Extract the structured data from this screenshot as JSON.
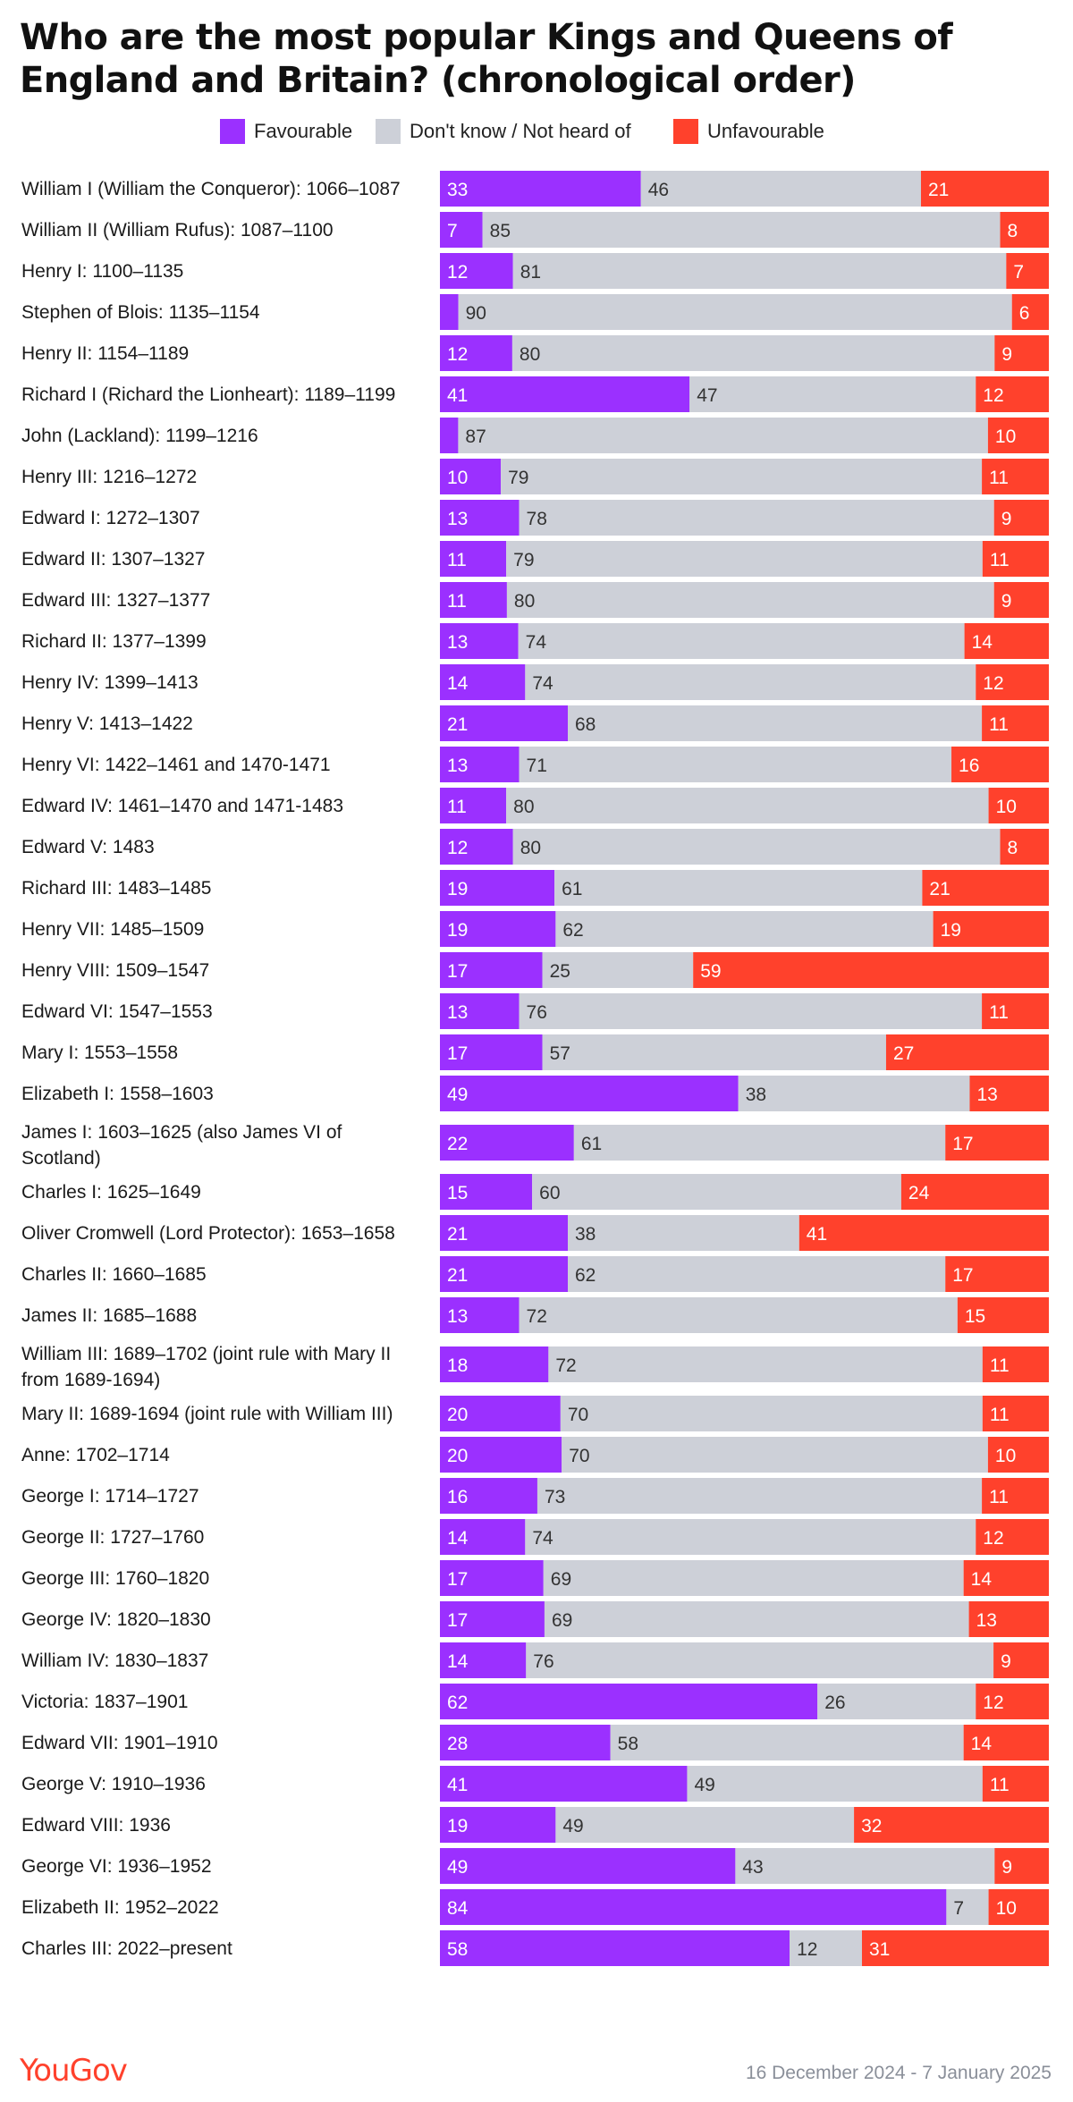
{
  "title": "Who are the most popular Kings and Queens of England and Britain? (chronological order)",
  "colors": {
    "favourable": "#9b30ff",
    "neutral": "#cdd0d8",
    "unfavourable": "#ff412c"
  },
  "legend": [
    "Favourable",
    "Don't know / Not heard of",
    "Unfavourable"
  ],
  "brand": "YouGov",
  "date_range": "16 December 2024 - 7 January 2025",
  "chart_data": {
    "type": "bar",
    "orientation": "horizontal",
    "stacked": true,
    "xlim": [
      0,
      100
    ],
    "categories": [
      "William I (William the Conqueror): 1066–1087",
      "William II (William Rufus): 1087–1100",
      "Henry I: 1100–1135",
      "Stephen of Blois: 1135–1154",
      "Henry II: 1154–1189",
      "Richard I (Richard the Lionheart): 1189–1199",
      "John (Lackland): 1199–1216",
      "Henry III: 1216–1272",
      "Edward I: 1272–1307",
      "Edward II: 1307–1327",
      "Edward III: 1327–1377",
      "Richard II: 1377–1399",
      "Henry IV: 1399–1413",
      "Henry V: 1413–1422",
      "Henry VI: 1422–1461 and 1470-1471",
      "Edward IV: 1461–1470 and 1471-1483",
      "Edward V: 1483",
      "Richard III: 1483–1485",
      "Henry VII: 1485–1509",
      "Henry VIII: 1509–1547",
      "Edward VI: 1547–1553",
      "Mary I: 1553–1558",
      "Elizabeth I: 1558–1603",
      "James I: 1603–1625 (also James VI of Scotland)",
      "Charles I: 1625–1649",
      "Oliver Cromwell (Lord Protector): 1653–1658",
      "Charles II: 1660–1685",
      "James II: 1685–1688",
      "William III: 1689–1702 (joint rule with Mary II from 1689-1694)",
      "Mary II: 1689-1694 (joint rule with William III)",
      "Anne: 1702–1714",
      "George I: 1714–1727",
      "George II: 1727–1760",
      "George III: 1760–1820",
      "George IV: 1820–1830",
      "William IV: 1830–1837",
      "Victoria: 1837–1901",
      "Edward VII: 1901–1910",
      "George V: 1910–1936",
      "Edward VIII: 1936",
      "George VI: 1936–1952",
      "Elizabeth II: 1952–2022",
      "Charles III: 2022–present"
    ],
    "series": [
      {
        "name": "Favourable",
        "values": [
          33,
          7,
          12,
          3,
          12,
          41,
          3,
          10,
          13,
          11,
          11,
          13,
          14,
          21,
          13,
          11,
          12,
          19,
          19,
          17,
          13,
          17,
          49,
          22,
          15,
          21,
          21,
          13,
          18,
          20,
          20,
          16,
          14,
          17,
          17,
          14,
          62,
          28,
          41,
          19,
          49,
          84,
          58
        ],
        "labels": [
          "33",
          "7",
          "12",
          "",
          "12",
          "41",
          "",
          "10",
          "13",
          "11",
          "11",
          "13",
          "14",
          "21",
          "13",
          "11",
          "12",
          "19",
          "19",
          "17",
          "13",
          "17",
          "49",
          "22",
          "15",
          "21",
          "21",
          "13",
          "18",
          "20",
          "20",
          "16",
          "14",
          "17",
          "17",
          "14",
          "62",
          "28",
          "41",
          "19",
          "49",
          "84",
          "58"
        ]
      },
      {
        "name": "Don't know / Not heard of",
        "values": [
          46,
          85,
          81,
          90,
          80,
          47,
          87,
          79,
          78,
          79,
          80,
          74,
          74,
          68,
          71,
          80,
          80,
          61,
          62,
          25,
          76,
          57,
          38,
          61,
          60,
          38,
          62,
          72,
          72,
          70,
          70,
          73,
          74,
          69,
          69,
          76,
          26,
          58,
          49,
          49,
          43,
          7,
          12
        ],
        "labels": [
          "46",
          "85",
          "81",
          "90",
          "80",
          "47",
          "87",
          "79",
          "78",
          "79",
          "80",
          "74",
          "74",
          "68",
          "71",
          "80",
          "80",
          "61",
          "62",
          "25",
          "76",
          "57",
          "38",
          "61",
          "60",
          "38",
          "62",
          "72",
          "72",
          "70",
          "70",
          "73",
          "74",
          "69",
          "69",
          "76",
          "26",
          "58",
          "49",
          "49",
          "43",
          "7",
          "12"
        ]
      },
      {
        "name": "Unfavourable",
        "values": [
          21,
          8,
          7,
          6,
          9,
          12,
          10,
          11,
          9,
          11,
          9,
          14,
          12,
          11,
          16,
          10,
          8,
          21,
          19,
          59,
          11,
          27,
          13,
          17,
          24,
          41,
          17,
          15,
          11,
          11,
          10,
          11,
          12,
          14,
          13,
          9,
          12,
          14,
          11,
          32,
          9,
          10,
          31
        ],
        "labels": [
          "21",
          "8",
          "7",
          "6",
          "9",
          "12",
          "10",
          "11",
          "9",
          "11",
          "9",
          "14",
          "12",
          "11",
          "16",
          "10",
          "8",
          "21",
          "19",
          "59",
          "11",
          "27",
          "13",
          "17",
          "24",
          "41",
          "17",
          "15",
          "11",
          "11",
          "10",
          "11",
          "12",
          "14",
          "13",
          "9",
          "12",
          "14",
          "11",
          "32",
          "9",
          "10",
          "31"
        ]
      }
    ]
  }
}
